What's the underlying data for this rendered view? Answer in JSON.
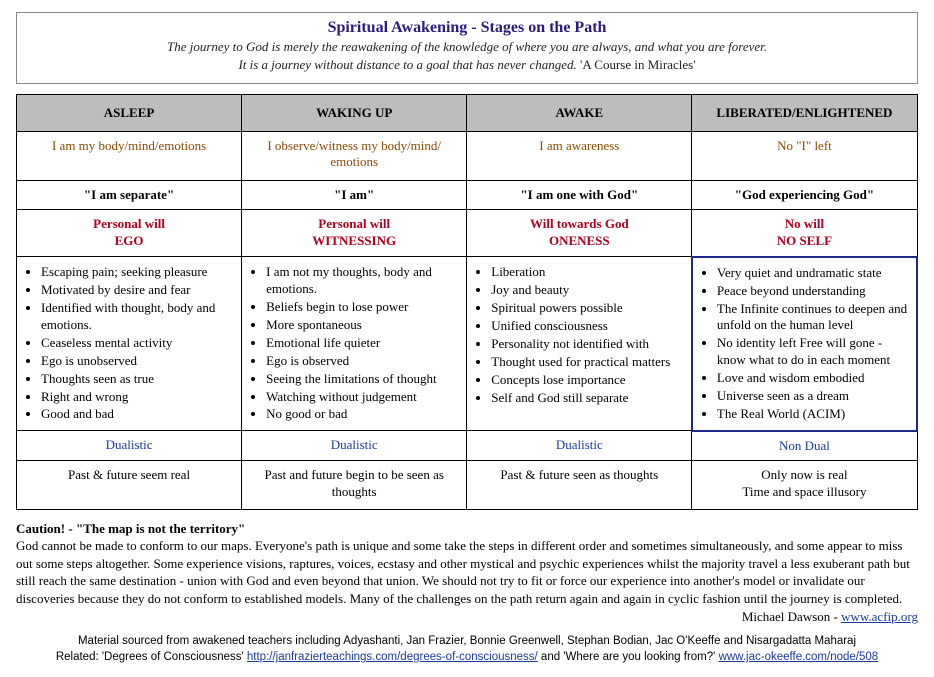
{
  "header": {
    "title": "Spiritual Awakening - Stages on the Path",
    "line1": "The journey to God is merely the reawakening of the knowledge of where you are always, and what you are forever.",
    "line2_italic": "It is a journey without distance to a goal that has never changed.",
    "line2_plain": " 'A Course in Miracles'"
  },
  "columns": [
    "ASLEEP",
    "WAKING UP",
    "AWAKE",
    "LIBERATED/ENLIGHTENED"
  ],
  "identity": [
    "I am my body/mind/emotions",
    "I observe/witness my body/mind/ emotions",
    "I am awareness",
    "No \"I\" left"
  ],
  "statement": [
    "\"I am separate\"",
    "\"I am\"",
    "\"I am one with God\"",
    "\"God experiencing God\""
  ],
  "will": [
    {
      "a": "Personal will",
      "b": "EGO"
    },
    {
      "a": "Personal will",
      "b": "WITNESSING"
    },
    {
      "a": "Will towards God",
      "b": "ONENESS"
    },
    {
      "a": "No will",
      "b": "NO SELF"
    }
  ],
  "bullets": [
    [
      "Escaping pain; seeking pleasure",
      "Motivated by desire and fear",
      "Identified with thought, body and emotions.",
      "Ceaseless mental activity",
      "Ego is unobserved",
      "Thoughts seen as true",
      "Right and wrong",
      "Good and bad"
    ],
    [
      "I am not my thoughts, body and emotions.",
      "Beliefs begin to lose power",
      "More spontaneous",
      "Emotional life quieter",
      "Ego is observed",
      "Seeing the limitations of thought",
      "Watching without judgement",
      "No good or bad"
    ],
    [
      "Liberation",
      "Joy and beauty",
      "Spiritual powers possible",
      "Unified consciousness",
      "Personality not identified with",
      "Thought used for practical matters",
      "Concepts lose importance",
      "Self and God still separate"
    ],
    [
      "Very quiet and undramatic state",
      "Peace beyond understanding",
      "The Infinite continues to deepen and unfold on the human level",
      "No identity left Free will gone - know what to do in each moment",
      "Love and wisdom embodied",
      "Universe seen as a dream",
      "The Real World (ACIM)"
    ]
  ],
  "dual": [
    "Dualistic",
    "Dualistic",
    "Dualistic",
    "Non Dual"
  ],
  "time": [
    "Past & future seem real",
    "Past and future begin to be seen as thoughts",
    "Past & future seen as thoughts",
    "Only now is real\nTime and space illusory"
  ],
  "caution": {
    "lead": "Caution! - \"The map is not the territory\"",
    "body": "God cannot be made to conform to our maps. Everyone's path is unique and some take the steps in different order and sometimes simultaneously, and some appear to miss out some steps altogether. Some experience visions, raptures, voices, ecstasy and other mystical and psychic experiences whilst the majority travel a less exuberant path but still reach the same destination - union with God and even beyond that union. We should not try to fit or force our experience into another's model or invalidate our discoveries because they do not conform to established models. Many of the challenges on the path return again and again in cyclic fashion until the journey is completed.",
    "author": "Michael Dawson - ",
    "author_link_text": "www.acfip.org"
  },
  "footer": {
    "line1": "Material sourced from awakened teachers including Adyashanti, Jan Frazier, Bonnie Greenwell, Stephan Bodian, Jac O'Keeffe and Nisargadatta Maharaj",
    "line2_a": "Related: 'Degrees of Consciousness'  ",
    "link1": "http://janfrazierteachings.com/degrees-of-consciousness/",
    "line2_b": "  and 'Where are you looking from?' ",
    "link2": "www.jac-okeeffe.com/node/508"
  }
}
